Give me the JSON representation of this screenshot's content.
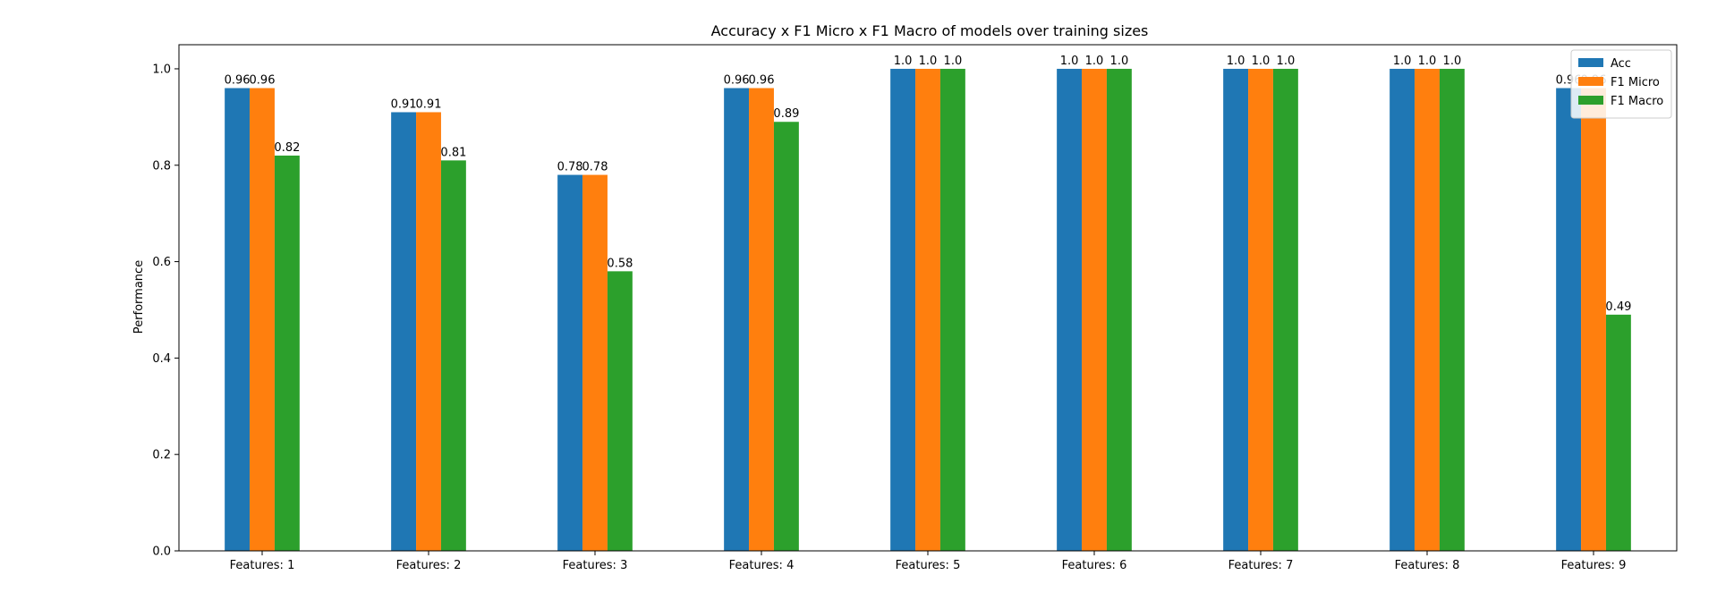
{
  "chart_data": {
    "type": "bar",
    "title": "Accuracy x F1 Micro x F1 Macro of models over training sizes",
    "xlabel": "",
    "ylabel": "Performance",
    "ylim": [
      0,
      1.05
    ],
    "yticks": [
      "0.0",
      "0.2",
      "0.4",
      "0.6",
      "0.8",
      "1.0"
    ],
    "categories": [
      "Features: 1",
      "Features: 2",
      "Features: 3",
      "Features: 4",
      "Features: 5",
      "Features: 6",
      "Features: 7",
      "Features: 8",
      "Features: 9"
    ],
    "series": [
      {
        "name": "Acc",
        "color": "#1f77b4",
        "values": [
          0.96,
          0.91,
          0.78,
          0.96,
          1.0,
          1.0,
          1.0,
          1.0,
          0.96
        ],
        "labels": [
          "0.96",
          "0.91",
          "0.78",
          "0.96",
          "1.0",
          "1.0",
          "1.0",
          "1.0",
          "0.96"
        ]
      },
      {
        "name": "F1 Micro",
        "color": "#ff7f0e",
        "values": [
          0.96,
          0.91,
          0.78,
          0.96,
          1.0,
          1.0,
          1.0,
          1.0,
          0.96
        ],
        "labels": [
          "0.96",
          "0.91",
          "0.78",
          "0.96",
          "1.0",
          "1.0",
          "1.0",
          "1.0",
          "0.96"
        ]
      },
      {
        "name": "F1 Macro",
        "color": "#2ca02c",
        "values": [
          0.82,
          0.81,
          0.58,
          0.89,
          1.0,
          1.0,
          1.0,
          1.0,
          0.49
        ],
        "labels": [
          "0.82",
          "0.81",
          "0.58",
          "0.89",
          "1.0",
          "1.0",
          "1.0",
          "1.0",
          "0.49"
        ]
      }
    ],
    "grid": false,
    "legend_position": "top-right"
  }
}
